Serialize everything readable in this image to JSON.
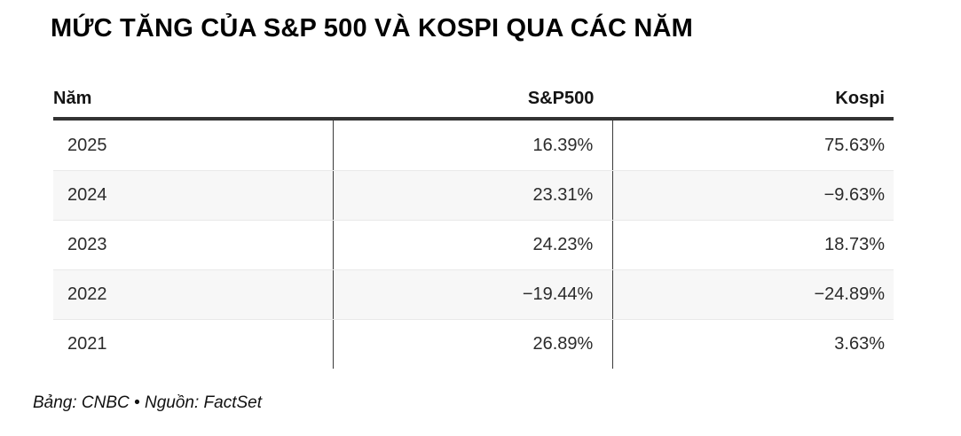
{
  "title": "MỨC TĂNG CỦA S&P 500 VÀ KOSPI QUA CÁC NĂM",
  "table": {
    "columns": [
      "Năm",
      "S&P500",
      "Kospi"
    ],
    "rows": [
      {
        "year": "2025",
        "sp500": "16.39%",
        "kospi": "75.63%"
      },
      {
        "year": "2024",
        "sp500": "23.31%",
        "kospi": "−9.63%"
      },
      {
        "year": "2023",
        "sp500": "24.23%",
        "kospi": "18.73%"
      },
      {
        "year": "2022",
        "sp500": "−19.44%",
        "kospi": "−24.89%"
      },
      {
        "year": "2021",
        "sp500": "26.89%",
        "kospi": "3.63%"
      }
    ]
  },
  "footer": {
    "text": "Bảng: CNBC • Nguồn: FactSet"
  },
  "chart_data": {
    "type": "table",
    "title": "MỨC TĂNG CỦA S&P 500 VÀ KOSPI QUA CÁC NĂM",
    "columns": [
      "Năm",
      "S&P500",
      "Kospi"
    ],
    "categories": [
      "2025",
      "2024",
      "2023",
      "2022",
      "2021"
    ],
    "series": [
      {
        "name": "S&P500",
        "values": [
          16.39,
          23.31,
          24.23,
          -19.44,
          26.89
        ]
      },
      {
        "name": "Kospi",
        "values": [
          75.63,
          -9.63,
          18.73,
          -24.89,
          3.63
        ]
      }
    ],
    "value_unit": "%",
    "attribution": "Bảng: CNBC • Nguồn: FactSet"
  },
  "colors": {
    "header_rule": "#333333",
    "column_divider": "#3a3a3a",
    "row_alt_background": "#f7f7f7",
    "row_separator": "#e9e9e9",
    "text": "#2b2b2b"
  }
}
